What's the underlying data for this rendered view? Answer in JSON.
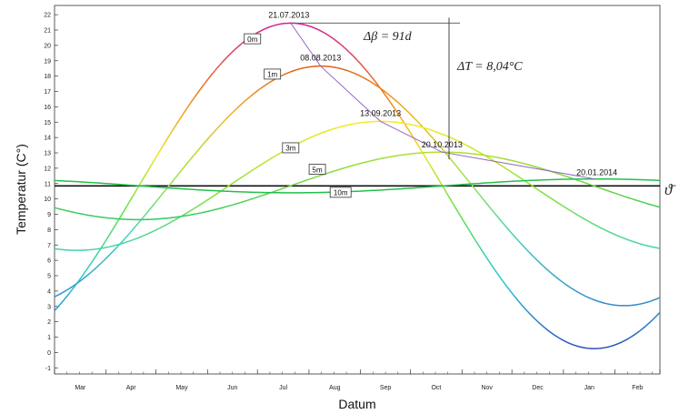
{
  "chart_data": {
    "type": "line",
    "xlabel": "Datum",
    "ylabel": "Temperatur (C°)",
    "x_ticks": [
      "Mar",
      "Apr",
      "May",
      "Jun",
      "Jul",
      "Aug",
      "Sep",
      "Oct",
      "Nov",
      "Dec",
      "Jan",
      "Feb"
    ],
    "y_ticks": [
      -1,
      0,
      1,
      2,
      3,
      4,
      5,
      6,
      7,
      8,
      9,
      10,
      11,
      12,
      13,
      14,
      15,
      16,
      17,
      18,
      19,
      20,
      21,
      22
    ],
    "xlim": [
      "2013-03-01",
      "2014-02-28"
    ],
    "ylim": [
      -1.4,
      22.6
    ],
    "mean_line": {
      "label": "ϑ̄",
      "value": 10.85
    },
    "series": [
      {
        "name": "0m",
        "mean": 10.85,
        "amplitude": 10.6,
        "peak_date": "2013-07-21",
        "color": "#cc1f9a"
      },
      {
        "name": "1m",
        "mean": 10.85,
        "amplitude": 7.8,
        "peak_date": "2013-08-08",
        "color": "#e06a1a"
      },
      {
        "name": "3m",
        "mean": 10.85,
        "amplitude": 4.2,
        "peak_date": "2013-09-13",
        "color": "#f0e020"
      },
      {
        "name": "5m",
        "mean": 10.85,
        "amplitude": 2.2,
        "peak_date": "2013-10-20",
        "color": "#7ad63a"
      },
      {
        "name": "10m",
        "mean": 10.85,
        "amplitude": 0.45,
        "peak_date": "2014-01-20",
        "color": "#22c04a"
      }
    ],
    "peak_labels": [
      "21.07.2013",
      "08.08.2013",
      "13.09.2013",
      "20.10.2013",
      "20.01.2014"
    ],
    "annotations": {
      "delta_beta": "Δβ = 91d",
      "delta_T": "ΔT = 8,04°C"
    }
  }
}
